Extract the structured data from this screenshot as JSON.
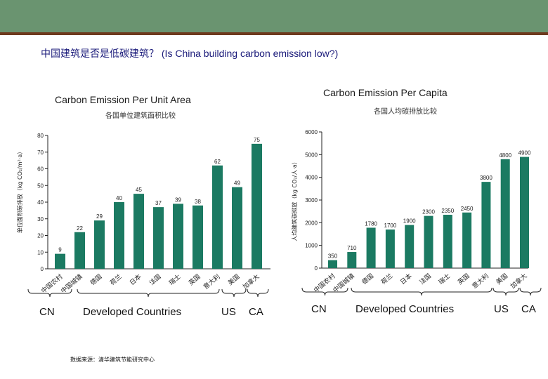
{
  "colors": {
    "banner": "#6a9470",
    "banner_line": "#6e3a1e",
    "bar": "#1b7a62",
    "title_text": "#1a1a7a"
  },
  "slide_title": "中国建筑是否是低碳建筑？ (Is China building carbon emission low?)",
  "source_note": "数据来源：清华建筑节能研究中心",
  "chart_data": [
    {
      "type": "bar",
      "title": "Carbon Emission Per Unit Area",
      "subtitle": "各国单位建筑面积比较",
      "ylabel": "单位面积碳排放（kg CO₂/m²·a）",
      "ylim": [
        0,
        80
      ],
      "yticks": [
        0,
        10,
        20,
        30,
        40,
        50,
        60,
        70,
        80
      ],
      "categories": [
        "中国农村",
        "中国城镇",
        "德国",
        "荷兰",
        "日本",
        "法国",
        "瑞士",
        "英国",
        "意大利",
        "美国",
        "加拿大"
      ],
      "values": [
        9,
        22,
        29,
        40,
        45,
        37,
        39,
        38,
        62,
        49,
        75
      ],
      "data_labels": [
        "9",
        "22",
        "29",
        "40",
        "45",
        "37",
        "39",
        "38",
        "62",
        "49",
        "75"
      ],
      "groups": [
        {
          "label": "CN"
        },
        {
          "label": "Developed Countries"
        },
        {
          "label": "US"
        },
        {
          "label": "CA"
        }
      ]
    },
    {
      "type": "bar",
      "title": "Carbon Emission Per Capita",
      "subtitle": "各国人均碳排放比较",
      "ylabel": "人均建筑碳排放（kg CO₂/人·a）",
      "ylim": [
        0,
        6000
      ],
      "yticks": [
        0,
        1000,
        2000,
        3000,
        4000,
        5000,
        6000
      ],
      "categories": [
        "中国农村",
        "中国城镇",
        "德国",
        "荷兰",
        "日本",
        "法国",
        "瑞士",
        "英国",
        "意大利",
        "美国",
        "加拿大"
      ],
      "values": [
        350,
        710,
        1780,
        1700,
        1900,
        2300,
        2350,
        2450,
        3800,
        4800,
        4900
      ],
      "data_labels": [
        "350",
        "710",
        "1780",
        "1700",
        "1900",
        "2300",
        "2350",
        "2450",
        "3800",
        "4800",
        "4900"
      ],
      "groups": [
        {
          "label": "CN"
        },
        {
          "label": "Developed Countries"
        },
        {
          "label": "US"
        },
        {
          "label": "CA"
        }
      ]
    }
  ]
}
